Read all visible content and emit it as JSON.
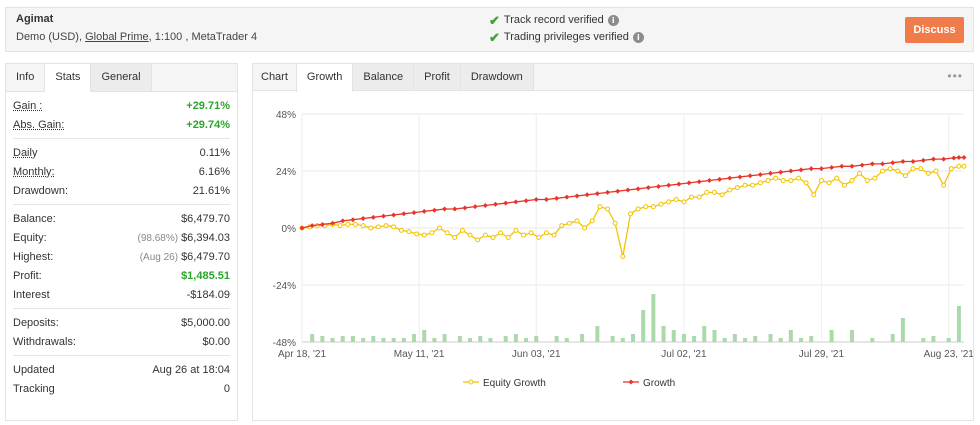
{
  "account": {
    "name": "Agimat",
    "type": "Demo (USD),",
    "broker": "Global Prime",
    "rest": ", 1:100 , MetaTrader 4"
  },
  "verification": {
    "track": "Track record verified",
    "trading": "Trading privileges verified"
  },
  "discuss_label": "Discuss",
  "stats": {
    "tabs": [
      "Info",
      "Stats",
      "General"
    ],
    "gain": {
      "label": "Gain :",
      "value": "+29.71%"
    },
    "abs_gain": {
      "label": "Abs. Gain:",
      "value": "+29.74%"
    },
    "daily": {
      "label": "Daily",
      "value": "0.11%"
    },
    "monthly": {
      "label": "Monthly:",
      "value": "6.16%"
    },
    "drawdown": {
      "label": "Drawdown:",
      "value": "21.61%"
    },
    "balance": {
      "label": "Balance:",
      "value": "$6,479.70"
    },
    "equity": {
      "label": "Equity:",
      "pre": "(98.68%)",
      "value": "$6,394.03"
    },
    "highest": {
      "label": "Highest:",
      "pre": "(Aug 26)",
      "value": "$6,479.70"
    },
    "profit": {
      "label": "Profit:",
      "value": "$1,485.51"
    },
    "interest": {
      "label": "Interest",
      "value": "-$184.09"
    },
    "deposits": {
      "label": "Deposits:",
      "value": "$5,000.00"
    },
    "withdrawals": {
      "label": "Withdrawals:",
      "value": "$0.00"
    },
    "updated": {
      "label": "Updated",
      "value": "Aug 26 at 18:04"
    },
    "tracking": {
      "label": "Tracking",
      "value": "0"
    }
  },
  "chart_tabs": [
    "Chart",
    "Growth",
    "Balance",
    "Profit",
    "Drawdown"
  ],
  "chart_data": {
    "type": "line",
    "y_tick_labels": [
      "48%",
      "24%",
      "0%",
      "-24%",
      "-48%"
    ],
    "y_ticks": [
      48,
      24,
      0,
      -24,
      -48
    ],
    "ylim": [
      -48,
      48
    ],
    "x_tick_labels": [
      "Apr 18, '21",
      "May 11, '21",
      "Jun 03, '21",
      "Jul 02, '21",
      "Jul 29, '21",
      "Aug 23, '21"
    ],
    "x_tick_days": [
      0,
      23,
      46,
      75,
      102,
      127
    ],
    "x_range_days": [
      0,
      130
    ],
    "grid": true,
    "legend_position": "bottom",
    "series": [
      {
        "name": "Equity Growth",
        "color": "#f2c400",
        "x": [
          0,
          1.5,
          3,
          4.5,
          6,
          7.5,
          9,
          10.5,
          12,
          13.5,
          15,
          16.5,
          18,
          19.5,
          21,
          22.5,
          24,
          25.5,
          27,
          28.5,
          30,
          31.5,
          33,
          34.5,
          36,
          37.5,
          39,
          40.5,
          42,
          43.5,
          45,
          46.5,
          48,
          49.5,
          51,
          52.5,
          54,
          55.5,
          57,
          58.5,
          60,
          61.5,
          63,
          64.5,
          66,
          67.5,
          69,
          70.5,
          72,
          73.5,
          75,
          76.5,
          78,
          79.5,
          81,
          82.5,
          84,
          85.5,
          87,
          88.5,
          90,
          91.5,
          93,
          94.5,
          96,
          97.5,
          99,
          100.5,
          102,
          103.5,
          105,
          106.5,
          108,
          109.5,
          111,
          112.5,
          114,
          115.5,
          117,
          118.5,
          120,
          121.5,
          123,
          124.5,
          126,
          127.5,
          129,
          130
        ],
        "y": [
          0,
          0.5,
          1,
          1,
          1.5,
          1,
          1.5,
          1.5,
          1,
          0,
          0.5,
          1,
          0.5,
          -1,
          -1.5,
          -2.5,
          -3,
          -2,
          0,
          -2,
          -4,
          -1,
          -3,
          -5,
          -3,
          -4,
          -2,
          -4,
          -1,
          -3,
          -2,
          -4,
          -2,
          -3,
          1,
          2,
          3,
          0,
          3,
          9,
          8,
          2,
          -12,
          6,
          8,
          9,
          9,
          10,
          11,
          12,
          11,
          13,
          13,
          15,
          15,
          14,
          16,
          17,
          18,
          18,
          19,
          20,
          21,
          20,
          20,
          21,
          19,
          14,
          20,
          19,
          21,
          18,
          20,
          23,
          20,
          21,
          24,
          25,
          24,
          22,
          25,
          25,
          23,
          24,
          18,
          25,
          26,
          26
        ]
      },
      {
        "name": "Growth",
        "color": "#e8352b",
        "x": [
          0,
          2,
          4,
          6,
          8,
          10,
          12,
          14,
          16,
          18,
          20,
          22,
          24,
          26,
          28,
          30,
          32,
          34,
          36,
          38,
          40,
          42,
          44,
          46,
          48,
          50,
          52,
          54,
          56,
          58,
          60,
          62,
          64,
          66,
          68,
          70,
          72,
          74,
          76,
          78,
          80,
          82,
          84,
          86,
          88,
          90,
          92,
          94,
          96,
          98,
          100,
          102,
          104,
          106,
          108,
          110,
          112,
          114,
          116,
          118,
          120,
          122,
          124,
          126,
          128,
          129,
          130
        ],
        "y": [
          0,
          1,
          1.5,
          2,
          3,
          3.5,
          4,
          4.5,
          5,
          5.5,
          6,
          6.5,
          7,
          7.5,
          8,
          8,
          8.5,
          9,
          9.5,
          10,
          10.5,
          11,
          11.5,
          12,
          12,
          12.5,
          13,
          13.5,
          14,
          14.5,
          15,
          15.5,
          16,
          16.5,
          17,
          17.5,
          18,
          18.5,
          19,
          19.5,
          20,
          20.5,
          21,
          21.5,
          22,
          22.5,
          23,
          23.5,
          24,
          24.5,
          25,
          25,
          25.5,
          26,
          26,
          26.5,
          27,
          27,
          27.5,
          28,
          28,
          28.5,
          29,
          29,
          29.5,
          29.7,
          29.7
        ]
      }
    ],
    "daily_bars": {
      "color": "#aad9aa",
      "x": [
        2,
        4,
        6,
        8,
        10,
        12,
        14,
        16,
        18,
        20,
        22,
        24,
        26,
        28,
        31,
        33,
        35,
        37,
        40,
        42,
        44,
        46,
        50,
        52,
        55,
        58,
        61,
        63,
        65,
        67,
        69,
        71,
        73,
        75,
        77,
        79,
        81,
        83,
        85,
        87,
        89,
        92,
        94,
        96,
        98,
        100,
        104,
        108,
        112,
        116,
        118,
        122,
        124,
        127,
        129
      ],
      "h": [
        2,
        1.5,
        1,
        1.5,
        1.5,
        1,
        1.5,
        1,
        1,
        1,
        2,
        3,
        1,
        2,
        1.5,
        1,
        1.5,
        1,
        1.5,
        2,
        1,
        1.5,
        1.5,
        1,
        2,
        4,
        1.5,
        1,
        2,
        8,
        12,
        4,
        3,
        2,
        1.5,
        4,
        3,
        1,
        2,
        1,
        1.5,
        2,
        1,
        3,
        1,
        1.5,
        3,
        3,
        1,
        2,
        6,
        1,
        1.5,
        1,
        9
      ]
    }
  }
}
